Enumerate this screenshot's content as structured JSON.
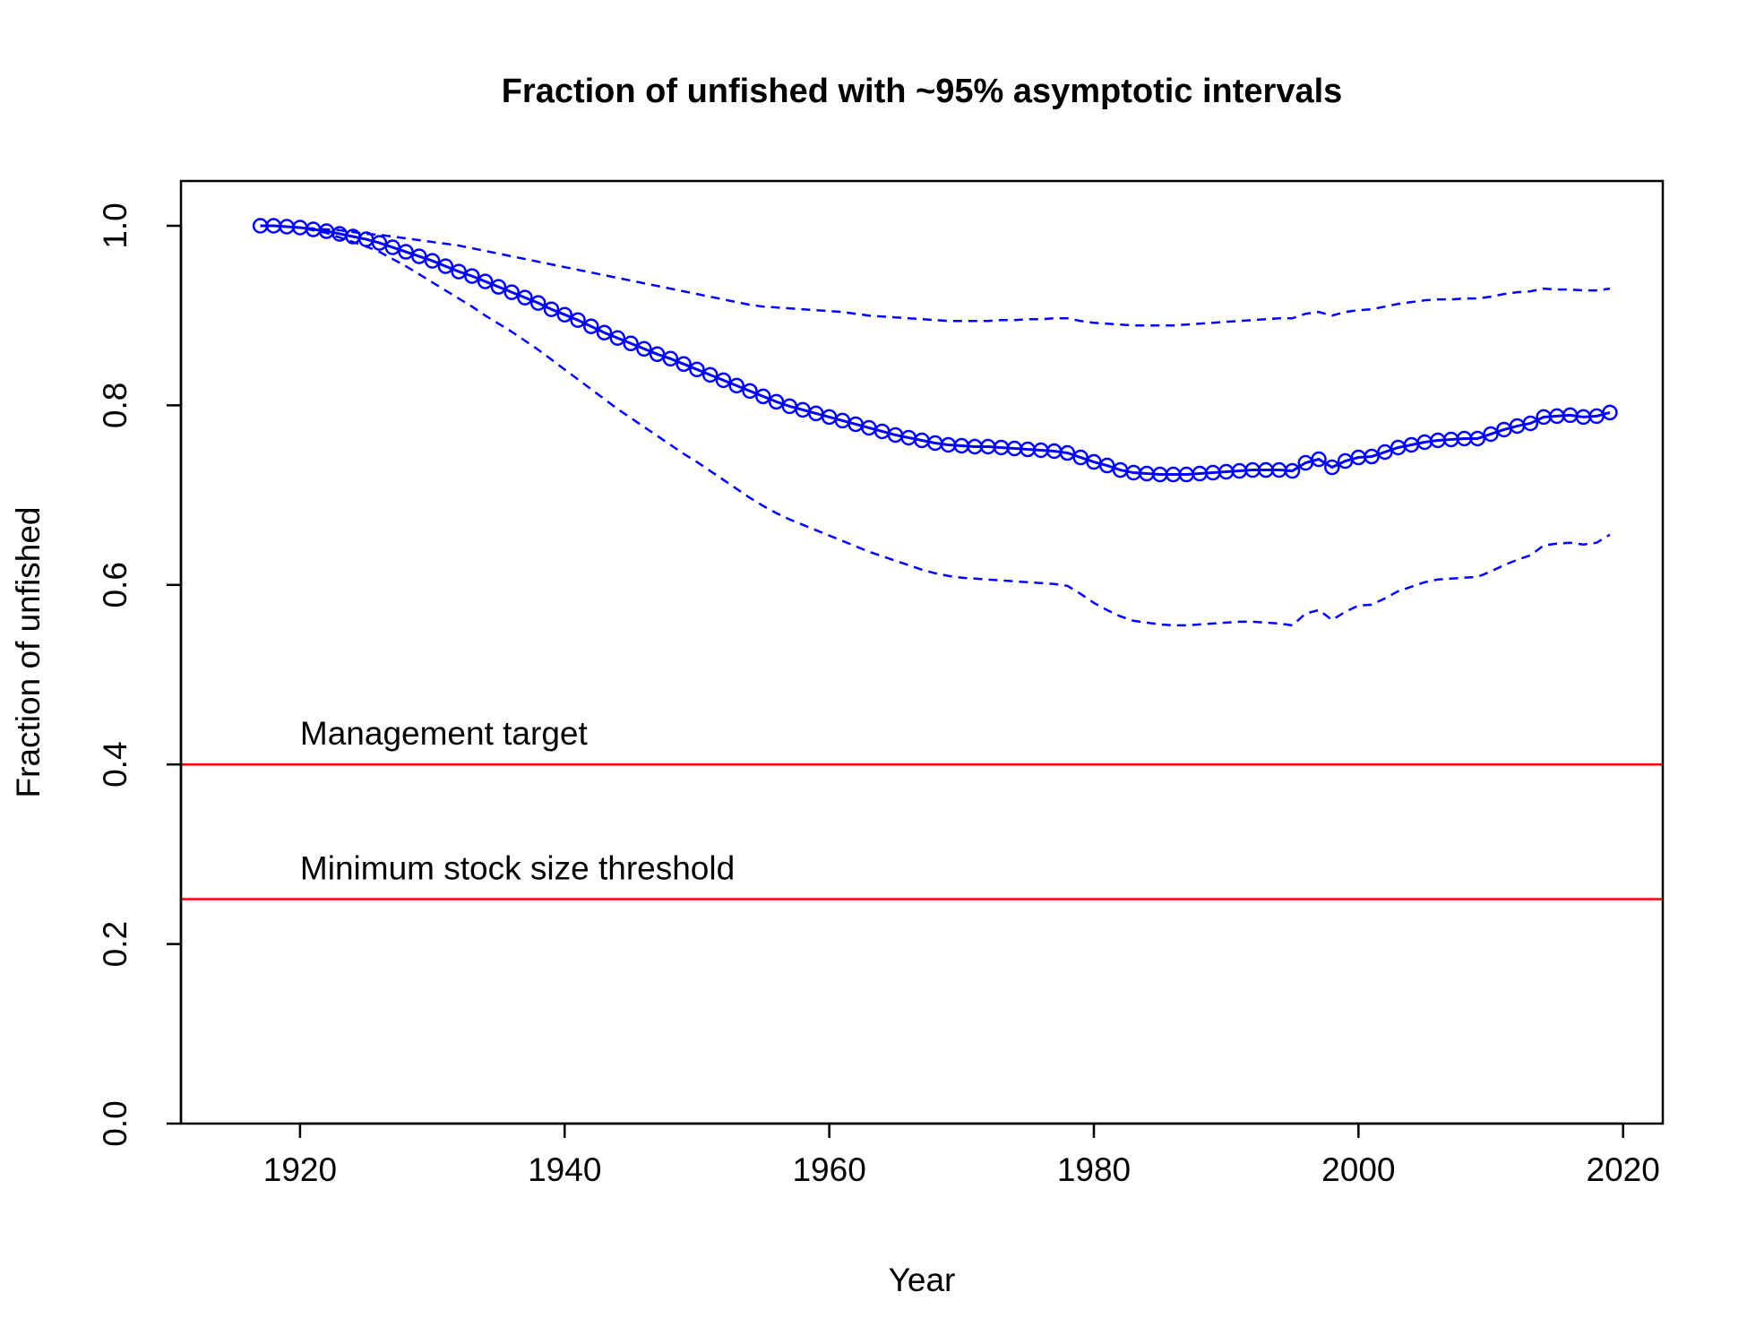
{
  "chart_data": {
    "type": "line",
    "title": "Fraction of unfished with ~95% asymptotic intervals",
    "xlabel": "Year",
    "ylabel": "Fraction of unfished",
    "xlim": [
      1911,
      2023
    ],
    "ylim": [
      0,
      1.05
    ],
    "xticks": [
      1920,
      1940,
      1960,
      1980,
      2000,
      2020
    ],
    "yticks": [
      "0.0",
      "0.2",
      "0.4",
      "0.6",
      "0.8",
      "1.0"
    ],
    "grid": false,
    "colors": {
      "series": "#0000ff",
      "reference": "#ff0000",
      "axis": "#000000"
    },
    "x": [
      1917,
      1918,
      1919,
      1920,
      1921,
      1922,
      1923,
      1924,
      1925,
      1926,
      1927,
      1928,
      1929,
      1930,
      1931,
      1932,
      1933,
      1934,
      1935,
      1936,
      1937,
      1938,
      1939,
      1940,
      1941,
      1942,
      1943,
      1944,
      1945,
      1946,
      1947,
      1948,
      1949,
      1950,
      1951,
      1952,
      1953,
      1954,
      1955,
      1956,
      1957,
      1958,
      1959,
      1960,
      1961,
      1962,
      1963,
      1964,
      1965,
      1966,
      1967,
      1968,
      1969,
      1970,
      1971,
      1972,
      1973,
      1974,
      1975,
      1976,
      1977,
      1978,
      1979,
      1980,
      1981,
      1982,
      1983,
      1984,
      1985,
      1986,
      1987,
      1988,
      1989,
      1990,
      1991,
      1992,
      1993,
      1994,
      1995,
      1996,
      1997,
      1998,
      1999,
      2000,
      2001,
      2002,
      2003,
      2004,
      2005,
      2006,
      2007,
      2008,
      2009,
      2010,
      2011,
      2012,
      2013,
      2014,
      2015,
      2016,
      2017,
      2018,
      2019
    ],
    "series": [
      {
        "style": "line-with-circles",
        "values": [
          1.0,
          1.0,
          0.999,
          0.998,
          0.996,
          0.994,
          0.991,
          0.988,
          0.985,
          0.981,
          0.976,
          0.971,
          0.966,
          0.961,
          0.955,
          0.949,
          0.944,
          0.938,
          0.932,
          0.926,
          0.92,
          0.914,
          0.907,
          0.901,
          0.895,
          0.888,
          0.881,
          0.875,
          0.869,
          0.863,
          0.857,
          0.852,
          0.846,
          0.84,
          0.834,
          0.828,
          0.822,
          0.816,
          0.81,
          0.804,
          0.799,
          0.795,
          0.791,
          0.787,
          0.783,
          0.779,
          0.775,
          0.771,
          0.767,
          0.764,
          0.761,
          0.758,
          0.756,
          0.755,
          0.754,
          0.754,
          0.753,
          0.752,
          0.751,
          0.75,
          0.749,
          0.747,
          0.742,
          0.737,
          0.733,
          0.728,
          0.725,
          0.724,
          0.723,
          0.723,
          0.723,
          0.724,
          0.725,
          0.726,
          0.727,
          0.728,
          0.728,
          0.728,
          0.727,
          0.736,
          0.74,
          0.731,
          0.738,
          0.742,
          0.743,
          0.748,
          0.753,
          0.756,
          0.759,
          0.761,
          0.762,
          0.763,
          0.763,
          0.768,
          0.773,
          0.777,
          0.78,
          0.787,
          0.788,
          0.789,
          0.787,
          0.788,
          0.792
        ]
      },
      {
        "style": "dashed",
        "values": [
          1.0,
          1.0,
          0.999,
          0.998,
          0.997,
          0.996,
          0.995,
          0.993,
          0.991,
          0.99,
          0.988,
          0.986,
          0.984,
          0.982,
          0.98,
          0.978,
          0.975,
          0.972,
          0.969,
          0.966,
          0.963,
          0.96,
          0.957,
          0.954,
          0.951,
          0.948,
          0.945,
          0.942,
          0.939,
          0.936,
          0.933,
          0.93,
          0.927,
          0.924,
          0.921,
          0.918,
          0.915,
          0.912,
          0.91,
          0.909,
          0.908,
          0.907,
          0.906,
          0.905,
          0.904,
          0.902,
          0.9,
          0.899,
          0.898,
          0.897,
          0.896,
          0.895,
          0.894,
          0.894,
          0.894,
          0.894,
          0.895,
          0.895,
          0.896,
          0.896,
          0.897,
          0.897,
          0.894,
          0.892,
          0.891,
          0.89,
          0.889,
          0.889,
          0.889,
          0.889,
          0.89,
          0.891,
          0.892,
          0.893,
          0.894,
          0.895,
          0.896,
          0.897,
          0.897,
          0.902,
          0.904,
          0.9,
          0.904,
          0.906,
          0.907,
          0.91,
          0.913,
          0.915,
          0.917,
          0.918,
          0.918,
          0.919,
          0.919,
          0.921,
          0.924,
          0.926,
          0.927,
          0.93,
          0.929,
          0.929,
          0.928,
          0.928,
          0.93
        ]
      },
      {
        "style": "dashed",
        "values": [
          1.0,
          1.0,
          0.999,
          0.998,
          0.995,
          0.992,
          0.987,
          0.982,
          0.977,
          0.971,
          0.963,
          0.955,
          0.946,
          0.937,
          0.928,
          0.919,
          0.91,
          0.9,
          0.891,
          0.882,
          0.872,
          0.862,
          0.851,
          0.84,
          0.829,
          0.818,
          0.807,
          0.796,
          0.786,
          0.776,
          0.766,
          0.756,
          0.746,
          0.737,
          0.727,
          0.717,
          0.707,
          0.697,
          0.688,
          0.68,
          0.673,
          0.667,
          0.661,
          0.655,
          0.649,
          0.643,
          0.637,
          0.632,
          0.627,
          0.622,
          0.617,
          0.613,
          0.61,
          0.608,
          0.607,
          0.606,
          0.605,
          0.604,
          0.603,
          0.602,
          0.601,
          0.599,
          0.59,
          0.58,
          0.572,
          0.565,
          0.56,
          0.558,
          0.556,
          0.555,
          0.555,
          0.556,
          0.557,
          0.558,
          0.559,
          0.559,
          0.558,
          0.557,
          0.555,
          0.568,
          0.572,
          0.561,
          0.57,
          0.577,
          0.578,
          0.585,
          0.593,
          0.598,
          0.603,
          0.606,
          0.607,
          0.608,
          0.609,
          0.615,
          0.622,
          0.628,
          0.633,
          0.644,
          0.646,
          0.647,
          0.645,
          0.647,
          0.656
        ]
      }
    ],
    "reference_lines": [
      {
        "y": 0.4,
        "label": "Management target"
      },
      {
        "y": 0.25,
        "label": "Minimum stock size threshold"
      }
    ]
  }
}
